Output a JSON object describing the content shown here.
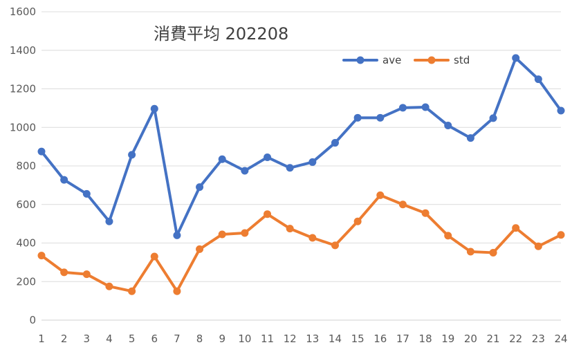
{
  "chart_data": {
    "type": "line",
    "title": "消費平均 202208",
    "xlabel": "",
    "ylabel": "",
    "x": [
      "1",
      "2",
      "3",
      "4",
      "5",
      "6",
      "7",
      "8",
      "9",
      "10",
      "11",
      "12",
      "13",
      "14",
      "15",
      "16",
      "17",
      "18",
      "19",
      "20",
      "21",
      "22",
      "23",
      "24"
    ],
    "ylim": [
      0,
      1600
    ],
    "yticks": [
      "0",
      "200",
      "400",
      "600",
      "800",
      "1000",
      "1200",
      "1400",
      "1600"
    ],
    "grid": true,
    "legend_position": "top-right",
    "series": [
      {
        "name": "ave",
        "color": "#4472C4",
        "values": [
          875,
          728,
          655,
          512,
          858,
          1097,
          440,
          690,
          835,
          775,
          845,
          790,
          820,
          920,
          1050,
          1050,
          1102,
          1105,
          1010,
          945,
          1048,
          1360,
          1250,
          1087
        ]
      },
      {
        "name": "std",
        "color": "#ED7D31",
        "values": [
          335,
          248,
          238,
          175,
          150,
          330,
          150,
          368,
          445,
          452,
          550,
          475,
          427,
          388,
          512,
          648,
          600,
          555,
          438,
          355,
          350,
          478,
          383,
          442
        ]
      }
    ]
  }
}
